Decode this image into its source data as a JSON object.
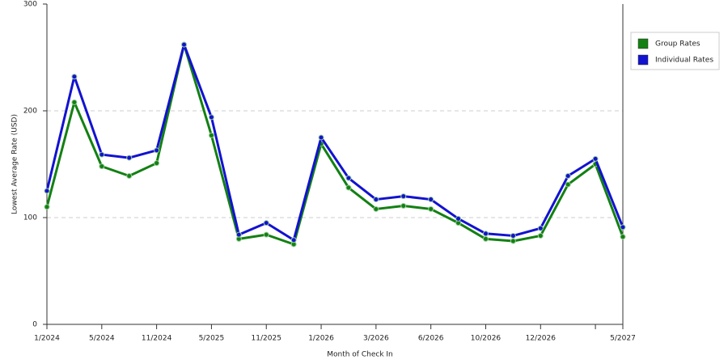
{
  "chart_data": {
    "type": "line",
    "x_label": "Month of Check In",
    "y_label": "Lowest Average Rate (USD)",
    "categories": [
      "1/2024",
      null,
      "5/2024",
      null,
      "11/2024",
      null,
      "5/2025",
      null,
      "11/2025",
      null,
      "1/2026",
      null,
      "3/2026",
      null,
      "6/2026",
      null,
      "10/2026",
      null,
      "12/2026",
      null,
      null,
      "5/2027"
    ],
    "series": [
      {
        "name": "Group Rates",
        "color": "#138013",
        "values": [
          110,
          208,
          148,
          139,
          151,
          262,
          177,
          80,
          84,
          75,
          169,
          128,
          108,
          111,
          108,
          95,
          80,
          78,
          83,
          131,
          150,
          82
        ]
      },
      {
        "name": "Individual Rates",
        "color": "#1212d0",
        "values": [
          125,
          232,
          159,
          156,
          163,
          262,
          194,
          84,
          95,
          79,
          175,
          137,
          117,
          120,
          117,
          99,
          85,
          83,
          90,
          139,
          155,
          91
        ]
      }
    ],
    "ylim": [
      0,
      300
    ],
    "yticks": [
      0,
      100,
      200,
      300
    ],
    "grid": true,
    "legend": "right"
  }
}
